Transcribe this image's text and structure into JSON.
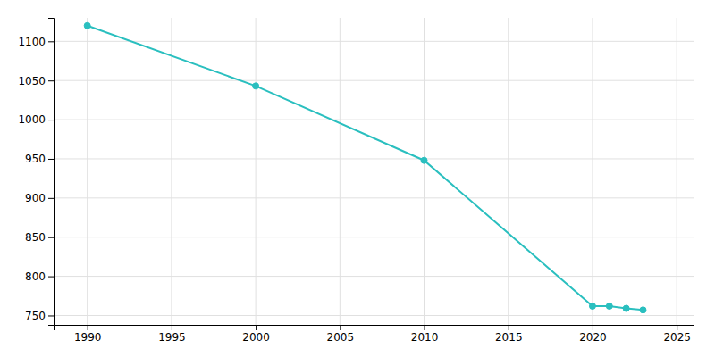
{
  "chart_data": {
    "type": "line",
    "x": [
      1990,
      2000,
      2010,
      2020,
      2021,
      2022,
      2023
    ],
    "values": [
      1120,
      1043,
      948,
      762,
      762,
      759,
      757
    ],
    "color": "#2ABFBF",
    "marker": "circle",
    "xlim": [
      1988,
      2026
    ],
    "ylim": [
      738,
      1130
    ],
    "xticks": [
      1990,
      1995,
      2000,
      2005,
      2010,
      2015,
      2020,
      2025
    ],
    "yticks": [
      750,
      800,
      850,
      900,
      950,
      1000,
      1050,
      1100
    ],
    "grid": true
  }
}
